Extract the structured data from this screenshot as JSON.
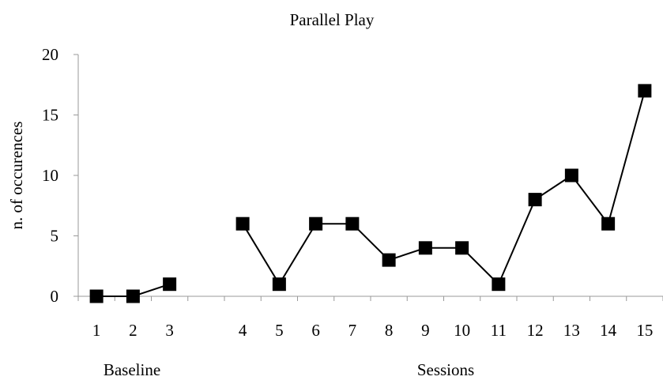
{
  "chart_data": {
    "type": "line",
    "title": "Parallel Play",
    "xlabel": "",
    "ylabel": "n. of occurences",
    "ylim": [
      0,
      20
    ],
    "yticks": [
      0,
      5,
      10,
      15,
      20
    ],
    "grid": false,
    "legend": "none",
    "categories": [
      "1",
      "2",
      "3",
      "",
      "4",
      "5",
      "6",
      "7",
      "8",
      "9",
      "10",
      "11",
      "12",
      "13",
      "14",
      "15"
    ],
    "group_labels": [
      "Baseline",
      "Sessions"
    ],
    "segments": [
      {
        "x": [
          "1",
          "2",
          "3"
        ],
        "values": [
          0,
          0,
          1
        ]
      },
      {
        "x": [
          "4",
          "5",
          "6",
          "7",
          "8",
          "9",
          "10",
          "11",
          "12",
          "13",
          "14",
          "15"
        ],
        "values": [
          6,
          1,
          6,
          6,
          3,
          4,
          4,
          1,
          8,
          10,
          6,
          17
        ]
      }
    ],
    "colors": {
      "line": "#000000",
      "marker": "#000000"
    }
  }
}
